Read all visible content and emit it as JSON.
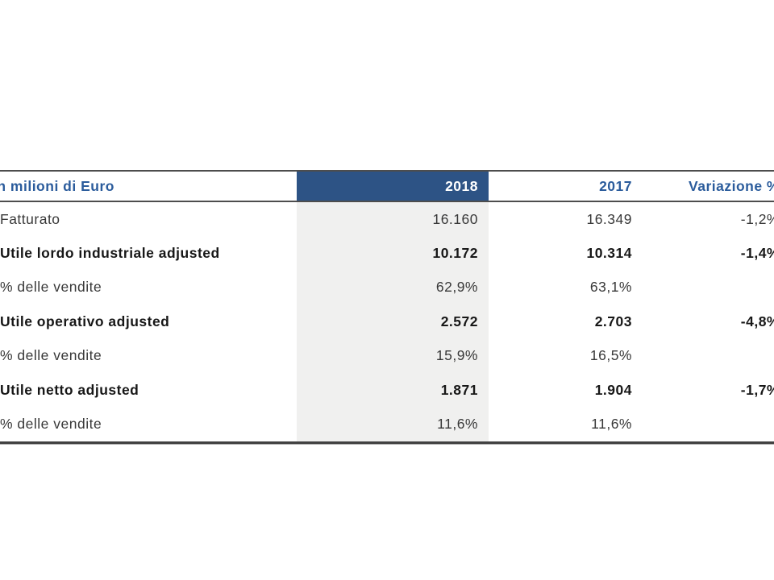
{
  "table": {
    "header": {
      "label": "In milioni di Euro",
      "col_2018": "2018",
      "col_2017": "2017",
      "col_variation": "Variazione %"
    },
    "rows": [
      {
        "label": "Fatturato",
        "v2018": "16.160",
        "v2017": "16.349",
        "vvar": "-1,2%",
        "bold": false
      },
      {
        "label": "Utile lordo industriale adjusted",
        "v2018": "10.172",
        "v2017": "10.314",
        "vvar": "-1,4%",
        "bold": true
      },
      {
        "label": "% delle vendite",
        "v2018": "62,9%",
        "v2017": "63,1%",
        "vvar": "",
        "bold": false
      },
      {
        "label": "Utile operativo adjusted",
        "v2018": "2.572",
        "v2017": "2.703",
        "vvar": "-4,8%",
        "bold": true
      },
      {
        "label": "% delle vendite",
        "v2018": "15,9%",
        "v2017": "16,5%",
        "vvar": "",
        "bold": false
      },
      {
        "label": "Utile netto adjusted",
        "v2018": "1.871",
        "v2017": "1.904",
        "vvar": "-1,7%",
        "bold": true
      },
      {
        "label": "% delle vendite",
        "v2018": "11,6%",
        "v2017": "11,6%",
        "vvar": "",
        "bold": false
      }
    ],
    "colors": {
      "header_cell_bg": "#2d5385",
      "header_text": "#2b5c9c",
      "highlight_column_bg": "#f0f0ef",
      "body_text": "#383838",
      "rule": "#4d4d4d"
    }
  }
}
